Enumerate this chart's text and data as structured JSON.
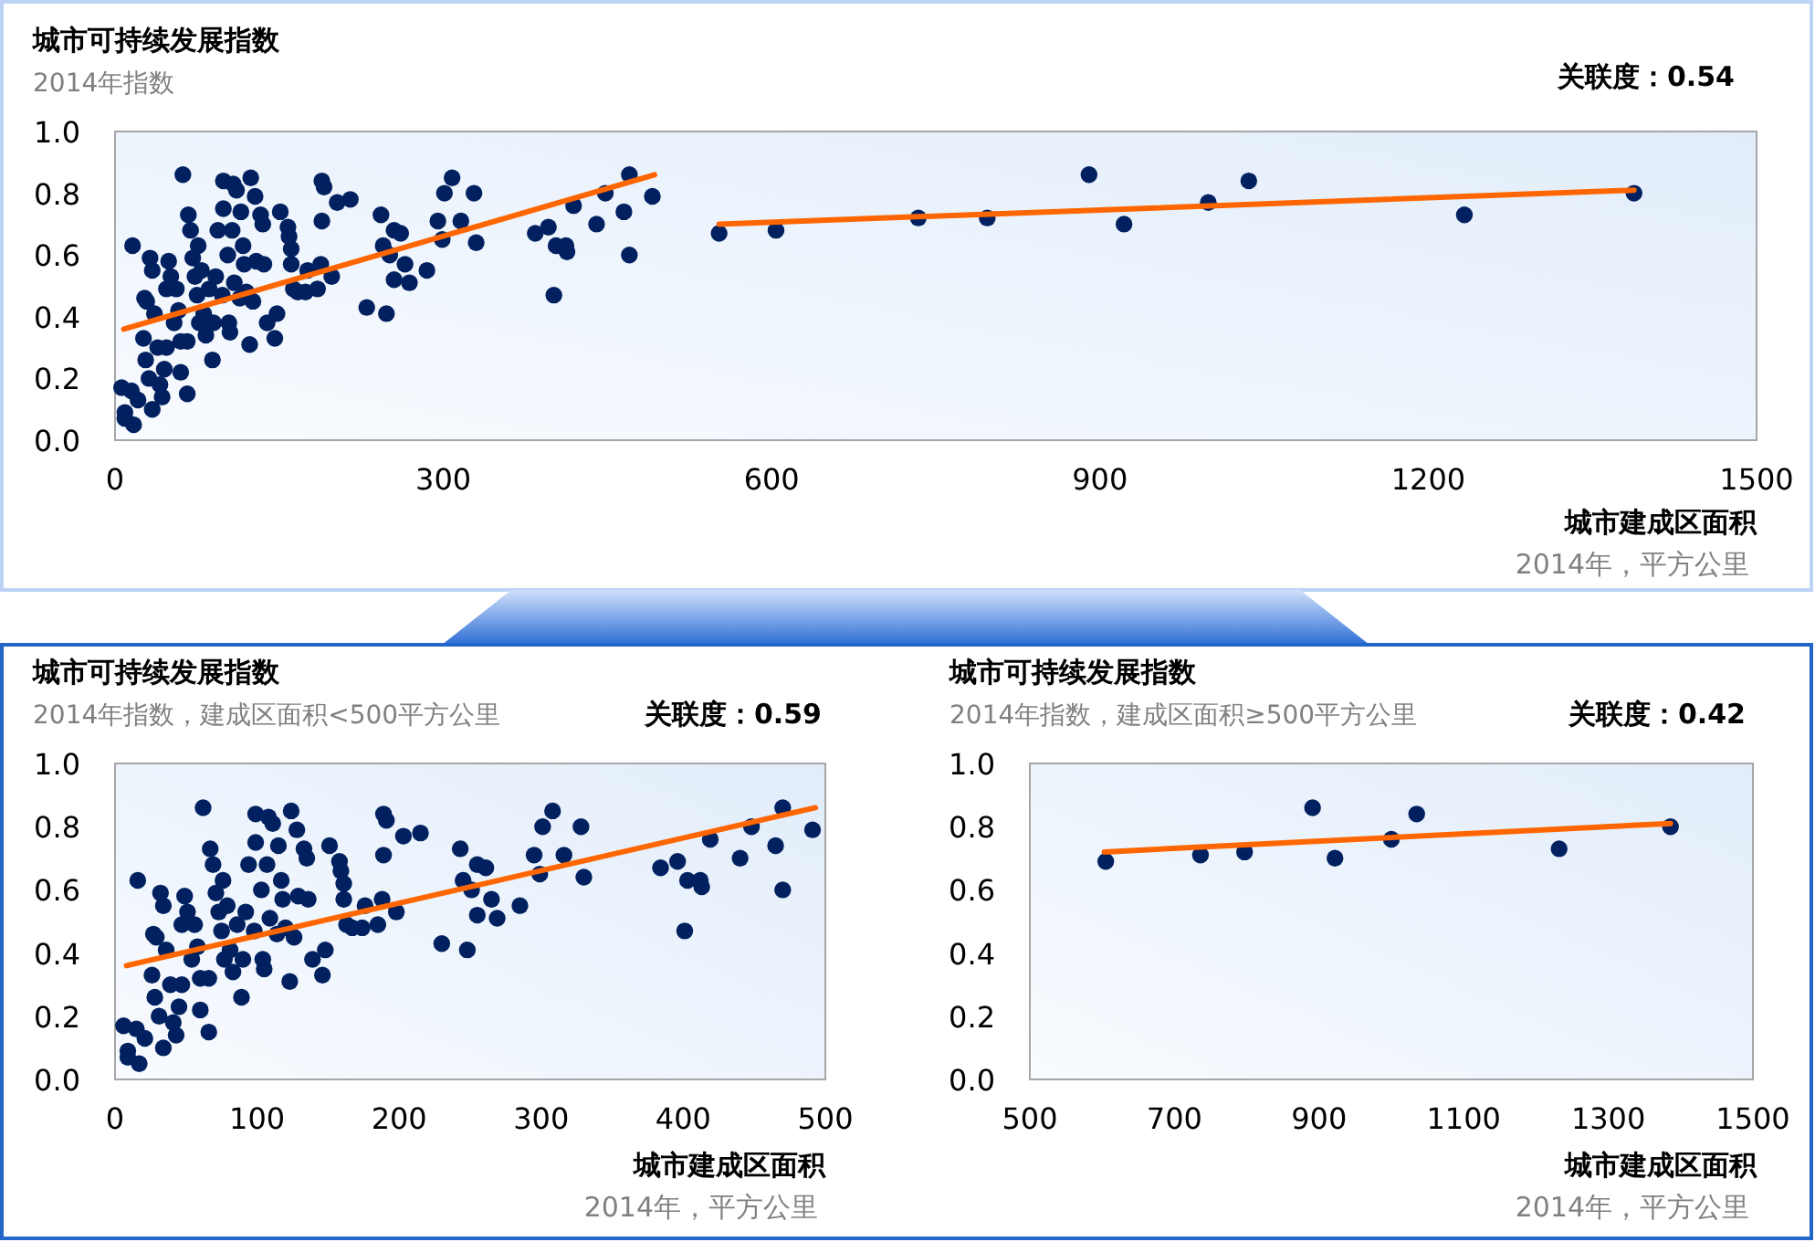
{
  "chart_data": [
    {
      "type": "scatter",
      "title": "城市可持续发展指数",
      "subtitle": "2014年指数",
      "xlabel": "城市建成区面积",
      "annotations": [
        "关联度：0.54",
        "2014年，平方公里"
      ],
      "xlim": [
        0,
        1500
      ],
      "ylim": [
        0,
        1
      ],
      "xticks": [
        0,
        300,
        600,
        900,
        1200,
        1500
      ],
      "yticks": [
        {
          "value": 0,
          "label": "0.0"
        },
        {
          "value": 0.2,
          "label": "0.2"
        },
        {
          "value": 0.4,
          "label": "0.4"
        },
        {
          "value": 0.6,
          "label": "0.6"
        },
        {
          "value": 0.8,
          "label": "0.8"
        },
        {
          "value": 1,
          "label": "1.0"
        }
      ],
      "series": [
        {
          "marker": "circle",
          "color": "#002060",
          "x": [
            6,
            9,
            9,
            17,
            16,
            15,
            21,
            26,
            27,
            29,
            32,
            34,
            36,
            34,
            28,
            31,
            39,
            41,
            43,
            45,
            47,
            49,
            47,
            51,
            54,
            56,
            58,
            60,
            62,
            60,
            66,
            66,
            67,
            69,
            71,
            73,
            75,
            76,
            77,
            79,
            81,
            83,
            86,
            89,
            90,
            92,
            94,
            98,
            99,
            99,
            103,
            104,
            105,
            107,
            108,
            109,
            111,
            114,
            115,
            117,
            118,
            120,
            123,
            124,
            126,
            128,
            129,
            133,
            135,
            136,
            139,
            146,
            148,
            151,
            158,
            159,
            161,
            161,
            163,
            167,
            174,
            176,
            185,
            188,
            189,
            189,
            191,
            198,
            203,
            215,
            230,
            243,
            245,
            248,
            251,
            255,
            255,
            261,
            265,
            269,
            285,
            295,
            299,
            301,
            308,
            316,
            328,
            330,
            384,
            396,
            401,
            403,
            412,
            413,
            419,
            440,
            448,
            465,
            470,
            470,
            491
          ],
          "values": [
            0.17,
            0.09,
            0.07,
            0.05,
            0.63,
            0.16,
            0.13,
            0.33,
            0.46,
            0.45,
            0.59,
            0.55,
            0.41,
            0.1,
            0.26,
            0.2,
            0.3,
            0.18,
            0.14,
            0.23,
            0.3,
            0.58,
            0.49,
            0.53,
            0.38,
            0.49,
            0.42,
            0.22,
            0.86,
            0.32,
            0.15,
            0.32,
            0.73,
            0.68,
            0.59,
            0.53,
            0.47,
            0.63,
            0.38,
            0.55,
            0.41,
            0.34,
            0.49,
            0.26,
            0.38,
            0.53,
            0.68,
            0.47,
            0.75,
            0.84,
            0.6,
            0.38,
            0.35,
            0.68,
            0.83,
            0.51,
            0.81,
            0.46,
            0.74,
            0.63,
            0.57,
            0.48,
            0.31,
            0.85,
            0.45,
            0.79,
            0.58,
            0.73,
            0.7,
            0.57,
            0.38,
            0.33,
            0.41,
            0.74,
            0.69,
            0.66,
            0.62,
            0.57,
            0.49,
            0.48,
            0.48,
            0.55,
            0.49,
            0.57,
            0.71,
            0.84,
            0.82,
            0.53,
            0.77,
            0.78,
            0.43,
            0.73,
            0.63,
            0.41,
            0.6,
            0.52,
            0.68,
            0.67,
            0.57,
            0.51,
            0.55,
            0.71,
            0.65,
            0.8,
            0.85,
            0.71,
            0.8,
            0.64,
            0.67,
            0.69,
            0.47,
            0.63,
            0.63,
            0.61,
            0.76,
            0.7,
            0.8,
            0.74,
            0.86,
            0.6,
            0.79
          ]
        },
        {
          "marker": "circle",
          "color": "#002060",
          "x": [
            552,
            604,
            734,
            797,
            890,
            922,
            999,
            1036,
            1233,
            1388
          ],
          "values": [
            0.67,
            0.68,
            0.72,
            0.72,
            0.86,
            0.7,
            0.77,
            0.84,
            0.73,
            0.8
          ]
        },
        {
          "type": "line",
          "marker": "none",
          "color": "#ff6600",
          "x": [
            8,
            493
          ],
          "values": [
            0.36,
            0.86
          ]
        },
        {
          "type": "line",
          "marker": "none",
          "color": "#ff6600",
          "x": [
            552,
            1388
          ],
          "values": [
            0.7,
            0.81
          ]
        }
      ]
    },
    {
      "type": "scatter",
      "title": "城市可持续发展指数",
      "subtitle": "2014年指数，建成区面积<500平方公里",
      "xlabel": "城市建成区面积",
      "annotations": [
        "关联度：0.59",
        "2014年，平方公里"
      ],
      "xlim": [
        0,
        500
      ],
      "ylim": [
        0,
        1
      ],
      "xticks": [
        0,
        100,
        200,
        300,
        400,
        500
      ],
      "yticks": [
        {
          "value": 0,
          "label": "0.0"
        },
        {
          "value": 0.2,
          "label": "0.2"
        },
        {
          "value": 0.4,
          "label": "0.4"
        },
        {
          "value": 0.6,
          "label": "0.6"
        },
        {
          "value": 0.8,
          "label": "0.8"
        },
        {
          "value": 1,
          "label": "1.0"
        }
      ],
      "series": [
        {
          "marker": "circle",
          "color": "#002060",
          "x": [
            6,
            9,
            9,
            17,
            16,
            15,
            21,
            26,
            27,
            29,
            32,
            34,
            36,
            34,
            28,
            31,
            39,
            41,
            43,
            45,
            47,
            49,
            47,
            51,
            54,
            56,
            58,
            60,
            62,
            60,
            66,
            66,
            67,
            69,
            71,
            73,
            75,
            76,
            77,
            79,
            81,
            83,
            86,
            89,
            90,
            92,
            94,
            98,
            99,
            99,
            103,
            104,
            105,
            107,
            108,
            109,
            111,
            114,
            115,
            117,
            118,
            120,
            123,
            124,
            126,
            128,
            129,
            133,
            135,
            136,
            139,
            146,
            148,
            151,
            158,
            159,
            161,
            161,
            163,
            167,
            174,
            176,
            185,
            188,
            189,
            189,
            191,
            198,
            203,
            215,
            230,
            243,
            245,
            248,
            251,
            255,
            255,
            261,
            265,
            269,
            285,
            295,
            299,
            301,
            308,
            316,
            328,
            330,
            384,
            396,
            401,
            403,
            412,
            413,
            419,
            440,
            448,
            465,
            470,
            470,
            491
          ],
          "values": [
            0.17,
            0.09,
            0.07,
            0.05,
            0.63,
            0.16,
            0.13,
            0.33,
            0.46,
            0.45,
            0.59,
            0.55,
            0.41,
            0.1,
            0.26,
            0.2,
            0.3,
            0.18,
            0.14,
            0.23,
            0.3,
            0.58,
            0.49,
            0.53,
            0.38,
            0.49,
            0.42,
            0.22,
            0.86,
            0.32,
            0.15,
            0.32,
            0.73,
            0.68,
            0.59,
            0.53,
            0.47,
            0.63,
            0.38,
            0.55,
            0.41,
            0.34,
            0.49,
            0.26,
            0.38,
            0.53,
            0.68,
            0.47,
            0.75,
            0.84,
            0.6,
            0.38,
            0.35,
            0.68,
            0.83,
            0.51,
            0.81,
            0.46,
            0.74,
            0.63,
            0.57,
            0.48,
            0.31,
            0.85,
            0.45,
            0.79,
            0.58,
            0.73,
            0.7,
            0.57,
            0.38,
            0.33,
            0.41,
            0.74,
            0.69,
            0.66,
            0.62,
            0.57,
            0.49,
            0.48,
            0.48,
            0.55,
            0.49,
            0.57,
            0.71,
            0.84,
            0.82,
            0.53,
            0.77,
            0.78,
            0.43,
            0.73,
            0.63,
            0.41,
            0.6,
            0.52,
            0.68,
            0.67,
            0.57,
            0.51,
            0.55,
            0.71,
            0.65,
            0.8,
            0.85,
            0.71,
            0.8,
            0.64,
            0.67,
            0.69,
            0.47,
            0.63,
            0.63,
            0.61,
            0.76,
            0.7,
            0.8,
            0.74,
            0.86,
            0.6,
            0.79
          ]
        },
        {
          "type": "line",
          "marker": "none",
          "color": "#ff6600",
          "x": [
            8,
            493
          ],
          "values": [
            0.36,
            0.86
          ]
        }
      ]
    },
    {
      "type": "scatter",
      "title": "城市可持续发展指数",
      "subtitle": "2014年指数，建成区面积≥500平方公里",
      "xlabel": "城市建成区面积",
      "annotations": [
        "关联度：0.42",
        "2014年，平方公里"
      ],
      "xlim": [
        500,
        1500
      ],
      "ylim": [
        0,
        1
      ],
      "xticks": [
        500,
        700,
        900,
        1100,
        1300,
        1500
      ],
      "yticks": [
        {
          "value": 0,
          "label": "0.0"
        },
        {
          "value": 0.2,
          "label": "0.2"
        },
        {
          "value": 0.4,
          "label": "0.4"
        },
        {
          "value": 0.6,
          "label": "0.6"
        },
        {
          "value": 0.8,
          "label": "0.8"
        },
        {
          "value": 1,
          "label": "1.0"
        }
      ],
      "series": [
        {
          "marker": "circle",
          "color": "#002060",
          "x": [
            605,
            736,
            797,
            891,
            922,
            1000,
            1035,
            1232,
            1386
          ],
          "values": [
            0.69,
            0.71,
            0.72,
            0.86,
            0.7,
            0.76,
            0.84,
            0.73,
            0.8
          ]
        },
        {
          "type": "line",
          "marker": "none",
          "color": "#ff6600",
          "x": [
            603,
            1386
          ],
          "values": [
            0.72,
            0.81
          ]
        }
      ]
    }
  ]
}
